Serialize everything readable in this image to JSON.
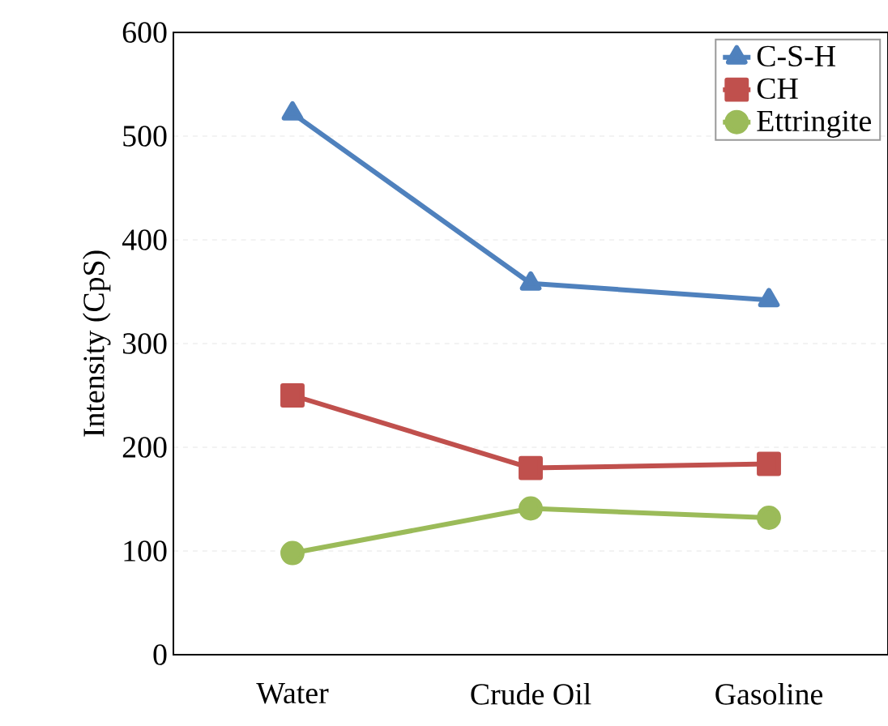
{
  "chart_data": {
    "type": "line",
    "ylabel": "Intensity (CpS)",
    "categories": [
      "Water",
      "Crude Oil",
      "Gasoline"
    ],
    "series": [
      {
        "name": "C-S-H",
        "color": "#4f81bd",
        "values": [
          522,
          358,
          342
        ],
        "marker": "triangle"
      },
      {
        "name": "CH",
        "color": "#c0504d",
        "values": [
          250,
          180,
          184
        ],
        "marker": "square"
      },
      {
        "name": "Ettringite",
        "color": "#9bbb59",
        "values": [
          98,
          141,
          132
        ],
        "marker": "circle"
      }
    ],
    "ylim": [
      0,
      600
    ],
    "yticks": [
      0,
      100,
      200,
      300,
      400,
      500,
      600
    ],
    "grid": "y",
    "legend": "top right",
    "line_style": "solid"
  }
}
